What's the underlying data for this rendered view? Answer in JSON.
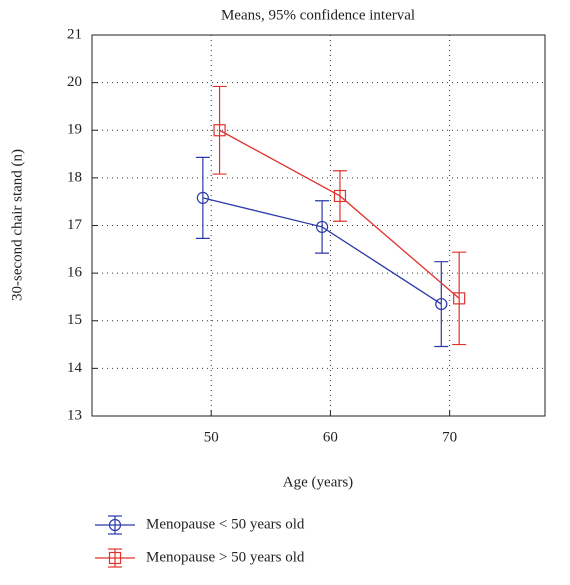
{
  "chart_data": {
    "type": "line",
    "title": "Means, 95% confidence interval",
    "x_label": "Age (years)",
    "y_label": "30-second chair stand (n)",
    "xlim": [
      40,
      78
    ],
    "xticks": [
      50,
      60,
      70
    ],
    "ylim": [
      13,
      21
    ],
    "yticks": [
      13,
      14,
      15,
      16,
      17,
      18,
      19,
      20,
      21
    ],
    "grid": true,
    "series": [
      {
        "name": "Menopause < 50 years old",
        "color": "#2b3aa8",
        "marker": "circle",
        "x": [
          49.3,
          59.3,
          69.3
        ],
        "values": [
          17.58,
          16.97,
          15.35
        ],
        "errors": [
          0.85,
          0.55,
          0.89
        ]
      },
      {
        "name": "Menopause > 50 years old",
        "color": "#e0322c",
        "marker": "square",
        "x": [
          50.7,
          60.8,
          70.8
        ],
        "values": [
          19.0,
          17.62,
          15.47
        ],
        "errors": [
          0.92,
          0.53,
          0.97
        ]
      }
    ]
  }
}
